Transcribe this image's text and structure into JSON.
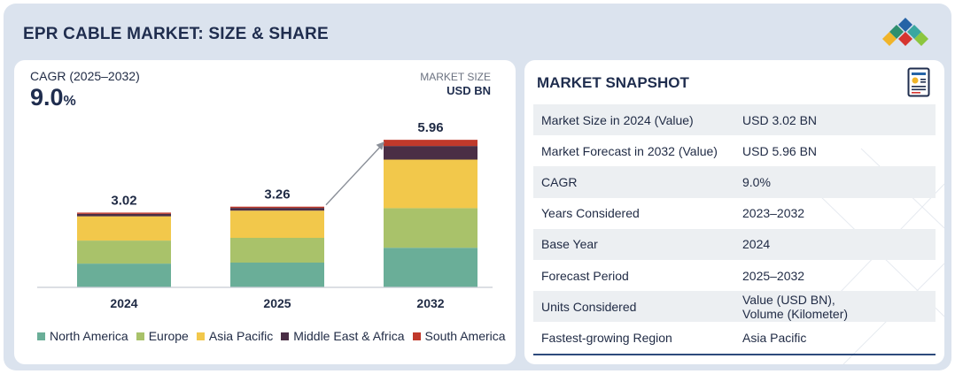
{
  "header": {
    "title": "EPR CABLE MARKET: SIZE & SHARE"
  },
  "brand": {
    "logo_icon": "diamond-cluster-logo",
    "colors": [
      "#2f8f6e",
      "#d6352f",
      "#f0b429",
      "#2563a6",
      "#8cc63f"
    ]
  },
  "cagr": {
    "label": "CAGR (2025–2032)",
    "value": "9.0",
    "unit": "%"
  },
  "market_size": {
    "label": "MARKET SIZE",
    "unit": "USD BN"
  },
  "chart_data": {
    "type": "bar",
    "stacked": true,
    "categories": [
      "2024",
      "2025",
      "2032"
    ],
    "totals": [
      3.02,
      3.26,
      5.96
    ],
    "total_labels": [
      "3.02",
      "3.26",
      "5.96"
    ],
    "series": [
      {
        "name": "North America",
        "color": "#6aae98",
        "values": [
          0.96,
          1.0,
          1.6
        ]
      },
      {
        "name": "Europe",
        "color": "#a9c26a",
        "values": [
          0.93,
          1.0,
          1.6
        ]
      },
      {
        "name": "Asia Pacific",
        "color": "#f2c84b",
        "values": [
          0.98,
          1.1,
          1.96
        ]
      },
      {
        "name": "Middle East & Africa",
        "color": "#4a2e45",
        "values": [
          0.1,
          0.11,
          0.55
        ]
      },
      {
        "name": "South America",
        "color": "#c0392b",
        "values": [
          0.05,
          0.05,
          0.25
        ]
      }
    ],
    "ylim": [
      0,
      6
    ],
    "grid": false,
    "legend_position": "bottom",
    "xlabel": "",
    "ylabel": ""
  },
  "snapshot": {
    "title": "MARKET SNAPSHOT",
    "icon": "report-document-icon",
    "rows": [
      {
        "key": "Market Size in 2024 (Value)",
        "value": "USD 3.02 BN"
      },
      {
        "key": "Market Forecast in 2032 (Value)",
        "value": "USD 5.96 BN"
      },
      {
        "key": "CAGR",
        "value": "9.0%"
      },
      {
        "key": "Years Considered",
        "value": "2023–2032"
      },
      {
        "key": "Base Year",
        "value": "2024"
      },
      {
        "key": "Forecast Period",
        "value": "2025–2032"
      },
      {
        "key": "Units Considered",
        "value": "Value (USD BN),",
        "value2": "Volume (Kilometer)"
      },
      {
        "key": "Fastest-growing Region",
        "value": "Asia Pacific"
      }
    ]
  }
}
